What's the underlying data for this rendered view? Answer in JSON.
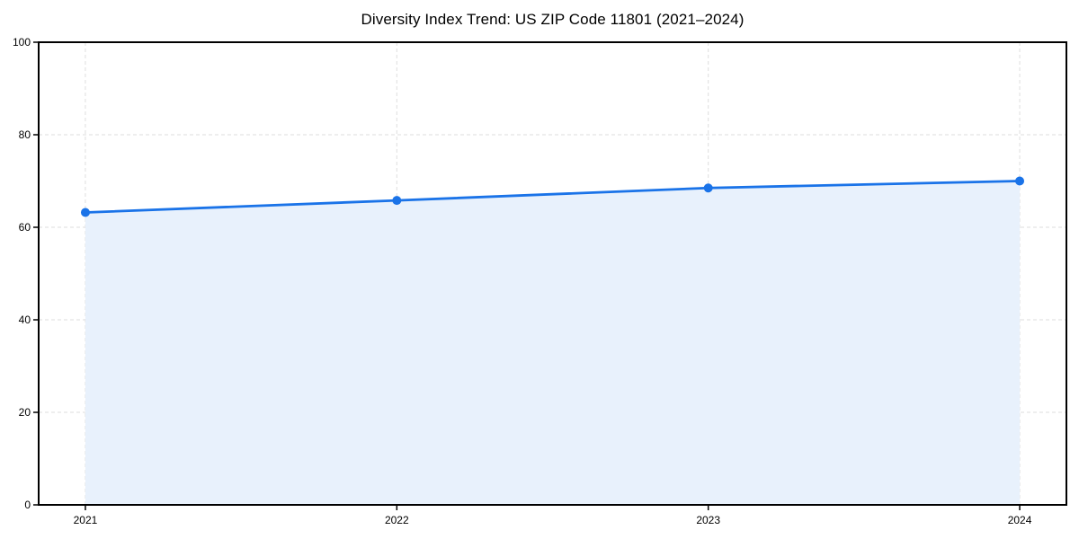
{
  "chart_data": {
    "type": "area",
    "title": "Diversity Index Trend: US ZIP Code 11801 (2021–2024)",
    "xlabel": "",
    "ylabel": "",
    "x": [
      "2021",
      "2022",
      "2023",
      "2024"
    ],
    "series": [
      {
        "name": "Diversity Index",
        "values": [
          63.2,
          65.8,
          68.5,
          70.0
        ]
      }
    ],
    "ylim": [
      0,
      100
    ],
    "yticks": [
      0,
      20,
      40,
      60,
      80,
      100
    ],
    "grid": "dashed-both-axes",
    "legend": "none",
    "frame": "full-box",
    "colors": {
      "line": "#1a73e8",
      "marker": "#1a73e8",
      "fill": "#e8f1fc",
      "grid": "#dedede",
      "axis": "#000000",
      "text": "#000000",
      "background": "#ffffff"
    }
  }
}
